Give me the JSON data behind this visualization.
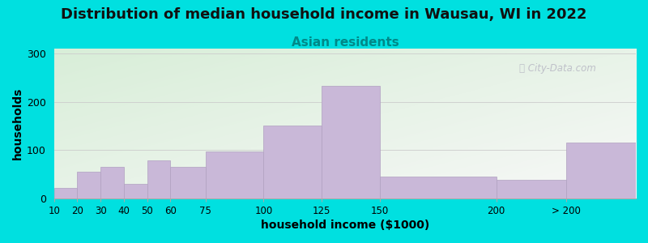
{
  "title": "Distribution of median household income in Wausau, WI in 2022",
  "subtitle": "Asian residents",
  "xlabel": "household income ($1000)",
  "ylabel": "households",
  "bar_labels": [
    "10",
    "20",
    "30",
    "40",
    "50",
    "60",
    "75",
    "100",
    "125",
    "150",
    "200",
    "> 200"
  ],
  "bar_lefts": [
    10,
    20,
    30,
    40,
    50,
    60,
    75,
    100,
    125,
    150,
    200,
    230
  ],
  "bar_rights": [
    20,
    30,
    40,
    50,
    60,
    75,
    100,
    125,
    150,
    200,
    230,
    260
  ],
  "bar_values": [
    22,
    55,
    65,
    30,
    78,
    65,
    97,
    150,
    232,
    45,
    38,
    115
  ],
  "bar_color": "#c9b8d8",
  "bar_edge_color": "#b0a0c0",
  "xlim": [
    10,
    260
  ],
  "ylim": [
    0,
    310
  ],
  "yticks": [
    0,
    100,
    200,
    300
  ],
  "xtick_positions": [
    10,
    20,
    30,
    40,
    50,
    60,
    75,
    100,
    125,
    150,
    200,
    230
  ],
  "xtick_labels": [
    "10",
    "20",
    "30",
    "40",
    "50",
    "60",
    "75",
    "100",
    "125",
    "150",
    "200",
    "> 200"
  ],
  "bg_outer": "#00e0e0",
  "bg_inner_topleft": "#d8eed8",
  "bg_inner_bottomright": "#f8f8f8",
  "title_fontsize": 13,
  "subtitle_fontsize": 11,
  "subtitle_color": "#008888",
  "axis_label_fontsize": 10,
  "watermark": "City-Data.com",
  "watermark_color": "#b8b8c4",
  "watermark_icon_color": "#c0c0cc"
}
